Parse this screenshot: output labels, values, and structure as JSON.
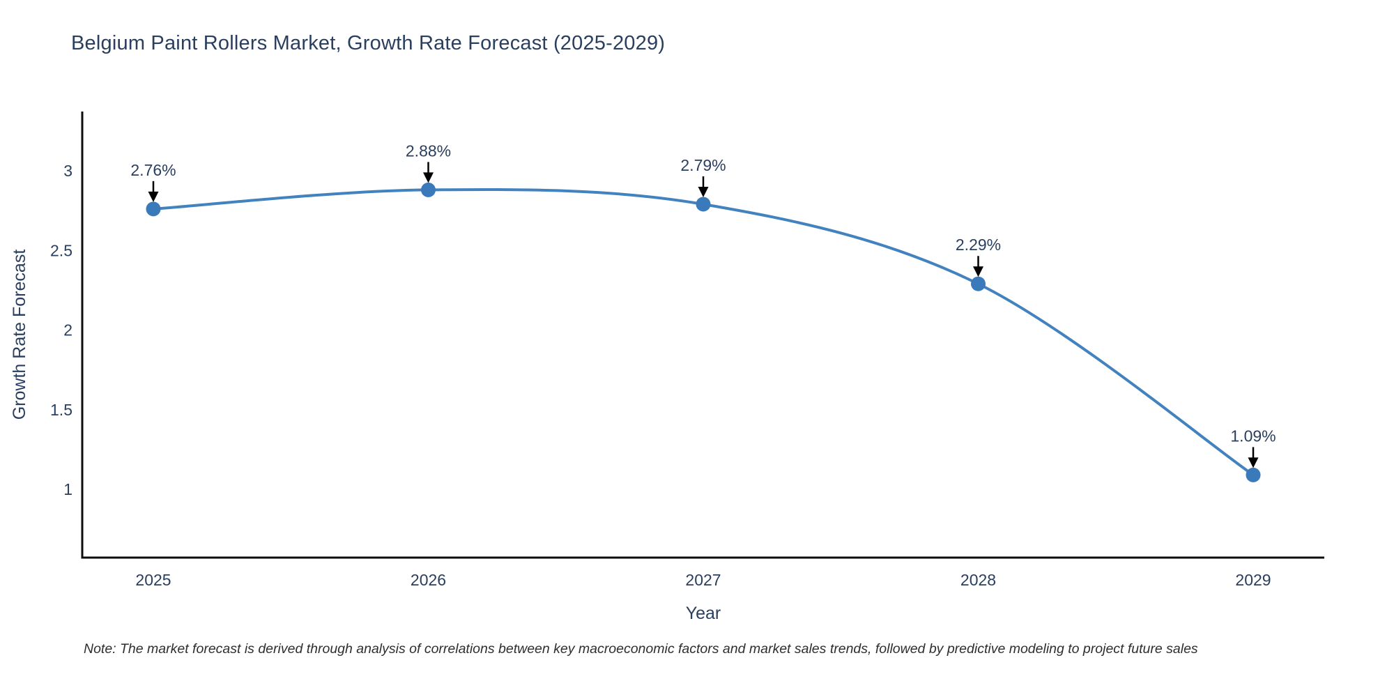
{
  "page": {
    "background_color": "#ffffff"
  },
  "chart_data": {
    "type": "line",
    "title": "Belgium Paint Rollers Market, Growth Rate Forecast (2025-2029)",
    "xlabel": "Year",
    "ylabel": "Growth Rate Forecast",
    "categories": [
      2025,
      2026,
      2027,
      2028,
      2029
    ],
    "series": [
      {
        "name": "Growth Rate Forecast",
        "values": [
          2.76,
          2.88,
          2.79,
          2.29,
          1.09
        ]
      }
    ],
    "point_labels": [
      "2.76%",
      "2.88%",
      "2.79%",
      "2.29%",
      "1.09%"
    ],
    "yticks": [
      3,
      2.5,
      2,
      1.5,
      1
    ],
    "ylim": [
      0.57,
      3.37
    ],
    "grid": false,
    "legend_visible": false,
    "line_smoothing": "spline",
    "marker_shape": "circle",
    "annotation_arrows": true,
    "colors": {
      "line": "#4282bf",
      "marker": "#3a79ba",
      "axis": "#0d0d0d",
      "text": "#2a3f5f",
      "annotation_arrow": "#000000"
    },
    "note": "Note: The market forecast is derived through analysis of correlations between key macroeconomic factors and market sales trends, followed by predictive modeling to project future sales"
  }
}
